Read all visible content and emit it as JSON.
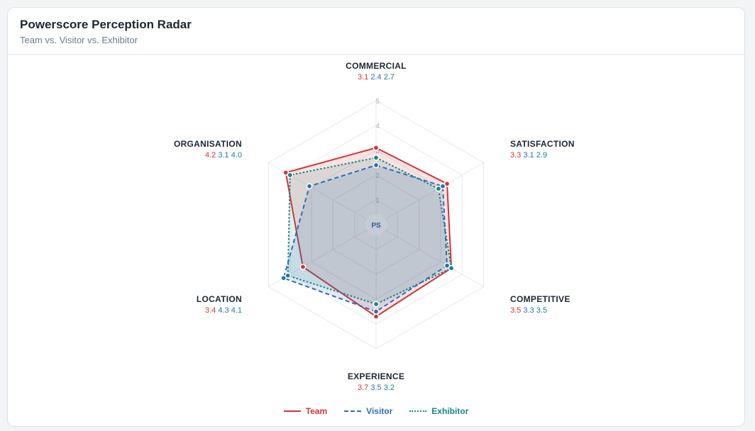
{
  "card": {
    "title": "Powerscore Perception Radar",
    "subtitle": "Team vs. Visitor vs. Exhibitor"
  },
  "chart_data": {
    "type": "radar",
    "axes": [
      "COMMERCIAL",
      "SATISFACTION",
      "COMPETITIVE",
      "EXPERIENCE",
      "LOCATION",
      "ORGANISATION"
    ],
    "scale": {
      "min": 0,
      "max": 5,
      "ticks": [
        "1",
        "2",
        "3",
        "4",
        "5"
      ]
    },
    "center_label": "PS",
    "series": [
      {
        "name": "Team",
        "values": [
          3.1,
          3.3,
          3.5,
          3.7,
          3.4,
          4.2
        ],
        "value_labels": [
          "3.1",
          "3.3",
          "3.5",
          "3.7",
          "3.4",
          "4.2"
        ],
        "color": "#d0363a",
        "dash": "solid"
      },
      {
        "name": "Visitor",
        "values": [
          2.4,
          3.1,
          3.3,
          3.5,
          4.3,
          3.1
        ],
        "value_labels": [
          "2.4",
          "3.1",
          "3.3",
          "3.5",
          "4.3",
          "3.1"
        ],
        "color": "#2f6db5",
        "dash": "dashed"
      },
      {
        "name": "Exhibitor",
        "values": [
          2.7,
          2.9,
          3.5,
          3.2,
          4.1,
          4.0
        ],
        "value_labels": [
          "2.7",
          "2.9",
          "3.5",
          "3.2",
          "4.1",
          "4.0"
        ],
        "color": "#1a8484",
        "dash": "dotted"
      }
    ],
    "legend_position": "bottom"
  }
}
